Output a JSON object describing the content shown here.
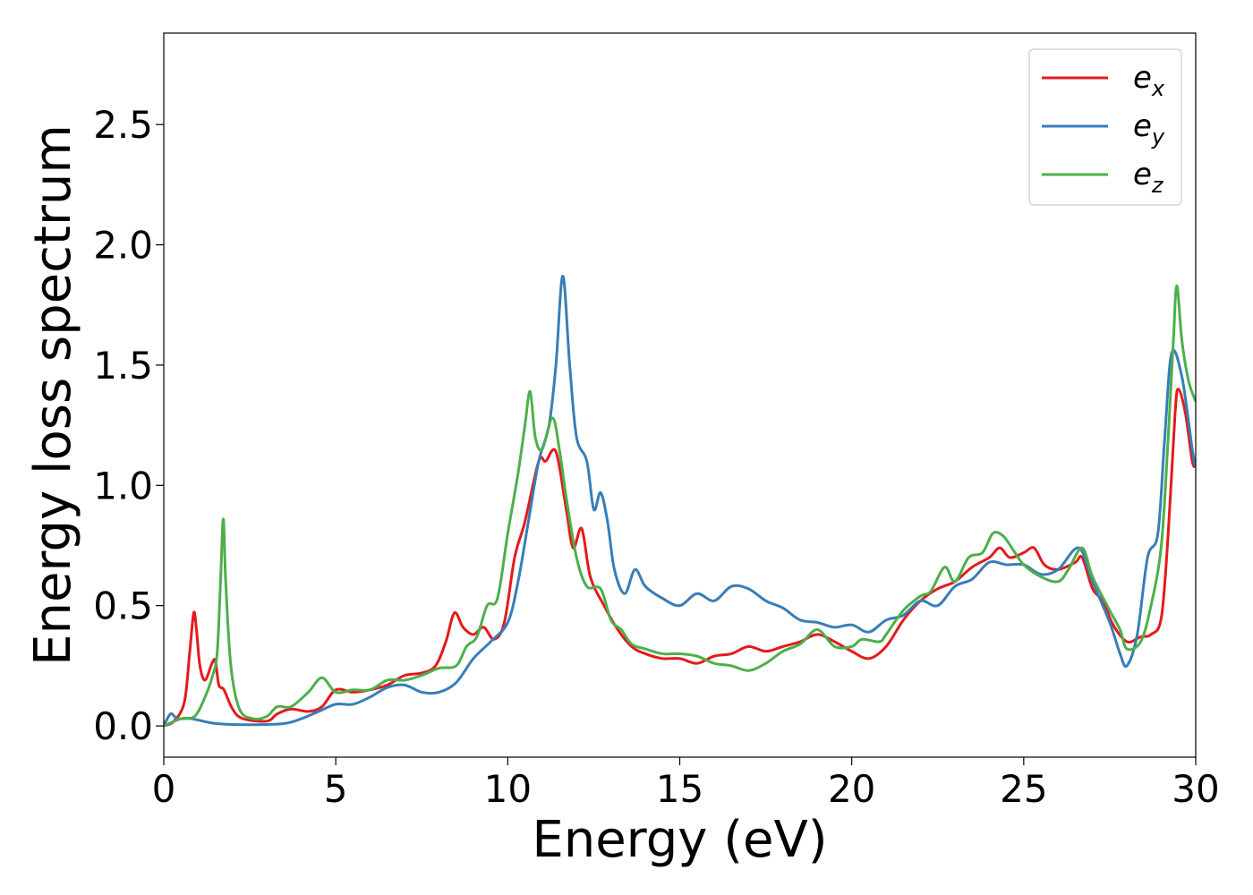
{
  "chart_data": {
    "type": "line",
    "title": "",
    "xlabel": "Energy (eV)",
    "ylabel": "Energy loss spectrum",
    "xlim": [
      0,
      30
    ],
    "ylim": [
      -0.13,
      2.88
    ],
    "xticks": [
      0,
      5,
      10,
      15,
      20,
      25,
      30
    ],
    "xtick_labels": [
      "0",
      "5",
      "10",
      "15",
      "20",
      "25",
      "30"
    ],
    "yticks": [
      0.0,
      0.5,
      1.0,
      1.5,
      2.0,
      2.5
    ],
    "ytick_labels": [
      "0.0",
      "0.5",
      "1.0",
      "1.5",
      "2.0",
      "2.5"
    ],
    "grid": false,
    "legend": {
      "placement": "top-right",
      "entries": [
        {
          "base": "e",
          "sub": "x",
          "color": "#e41a1c"
        },
        {
          "base": "e",
          "sub": "y",
          "color": "#377eb8"
        },
        {
          "base": "e",
          "sub": "z",
          "color": "#4daf4a"
        }
      ]
    },
    "series": [
      {
        "color": "#e41a1c",
        "points": [
          [
            0,
            0.0
          ],
          [
            0.3,
            0.02
          ],
          [
            0.6,
            0.1
          ],
          [
            0.75,
            0.3
          ],
          [
            0.87,
            0.47
          ],
          [
            0.95,
            0.4
          ],
          [
            1.05,
            0.25
          ],
          [
            1.2,
            0.19
          ],
          [
            1.4,
            0.26
          ],
          [
            1.5,
            0.27
          ],
          [
            1.6,
            0.17
          ],
          [
            1.75,
            0.15
          ],
          [
            2.0,
            0.07
          ],
          [
            2.3,
            0.03
          ],
          [
            3.0,
            0.02
          ],
          [
            3.3,
            0.05
          ],
          [
            3.7,
            0.07
          ],
          [
            4.2,
            0.06
          ],
          [
            4.6,
            0.08
          ],
          [
            5.0,
            0.15
          ],
          [
            5.5,
            0.14
          ],
          [
            6.0,
            0.15
          ],
          [
            6.5,
            0.17
          ],
          [
            7.0,
            0.21
          ],
          [
            7.5,
            0.22
          ],
          [
            7.9,
            0.25
          ],
          [
            8.2,
            0.35
          ],
          [
            8.45,
            0.47
          ],
          [
            8.7,
            0.41
          ],
          [
            9.0,
            0.38
          ],
          [
            9.3,
            0.41
          ],
          [
            9.6,
            0.36
          ],
          [
            9.9,
            0.43
          ],
          [
            10.2,
            0.7
          ],
          [
            10.5,
            0.85
          ],
          [
            10.9,
            1.1
          ],
          [
            11.1,
            1.1
          ],
          [
            11.4,
            1.14
          ],
          [
            11.7,
            0.9
          ],
          [
            11.9,
            0.74
          ],
          [
            12.15,
            0.82
          ],
          [
            12.4,
            0.62
          ],
          [
            12.8,
            0.5
          ],
          [
            13.2,
            0.4
          ],
          [
            13.6,
            0.33
          ],
          [
            14.0,
            0.3
          ],
          [
            14.5,
            0.28
          ],
          [
            15.0,
            0.28
          ],
          [
            15.5,
            0.26
          ],
          [
            16.0,
            0.29
          ],
          [
            16.5,
            0.3
          ],
          [
            17.0,
            0.33
          ],
          [
            17.5,
            0.31
          ],
          [
            18.0,
            0.33
          ],
          [
            18.5,
            0.35
          ],
          [
            19.0,
            0.38
          ],
          [
            19.5,
            0.35
          ],
          [
            20.0,
            0.31
          ],
          [
            20.5,
            0.28
          ],
          [
            21.0,
            0.33
          ],
          [
            21.5,
            0.44
          ],
          [
            22.0,
            0.52
          ],
          [
            22.5,
            0.57
          ],
          [
            23.0,
            0.6
          ],
          [
            23.5,
            0.66
          ],
          [
            24.0,
            0.7
          ],
          [
            24.3,
            0.74
          ],
          [
            24.6,
            0.7
          ],
          [
            25.0,
            0.72
          ],
          [
            25.3,
            0.74
          ],
          [
            25.6,
            0.67
          ],
          [
            26.0,
            0.65
          ],
          [
            26.5,
            0.68
          ],
          [
            26.7,
            0.7
          ],
          [
            27.0,
            0.57
          ],
          [
            27.3,
            0.52
          ],
          [
            27.6,
            0.42
          ],
          [
            28.0,
            0.35
          ],
          [
            28.4,
            0.37
          ],
          [
            28.7,
            0.38
          ],
          [
            29.0,
            0.45
          ],
          [
            29.2,
            0.8
          ],
          [
            29.4,
            1.3
          ],
          [
            29.5,
            1.4
          ],
          [
            29.7,
            1.3
          ],
          [
            29.9,
            1.1
          ],
          [
            30.0,
            1.08
          ]
        ]
      },
      {
        "color": "#377eb8",
        "points": [
          [
            0,
            0.0
          ],
          [
            0.2,
            0.05
          ],
          [
            0.4,
            0.03
          ],
          [
            0.8,
            0.03
          ],
          [
            1.5,
            0.01
          ],
          [
            2.5,
            0.005
          ],
          [
            3.5,
            0.01
          ],
          [
            4.0,
            0.03
          ],
          [
            4.5,
            0.06
          ],
          [
            5.0,
            0.09
          ],
          [
            5.5,
            0.09
          ],
          [
            6.0,
            0.12
          ],
          [
            6.5,
            0.16
          ],
          [
            7.0,
            0.17
          ],
          [
            7.5,
            0.14
          ],
          [
            8.0,
            0.14
          ],
          [
            8.5,
            0.18
          ],
          [
            9.0,
            0.28
          ],
          [
            9.5,
            0.35
          ],
          [
            10.0,
            0.43
          ],
          [
            10.3,
            0.6
          ],
          [
            10.6,
            0.85
          ],
          [
            10.9,
            1.1
          ],
          [
            11.2,
            1.25
          ],
          [
            11.4,
            1.5
          ],
          [
            11.6,
            1.87
          ],
          [
            11.8,
            1.5
          ],
          [
            12.0,
            1.2
          ],
          [
            12.3,
            1.1
          ],
          [
            12.5,
            0.9
          ],
          [
            12.7,
            0.97
          ],
          [
            12.9,
            0.85
          ],
          [
            13.1,
            0.65
          ],
          [
            13.4,
            0.55
          ],
          [
            13.7,
            0.65
          ],
          [
            14.0,
            0.58
          ],
          [
            14.5,
            0.53
          ],
          [
            15.0,
            0.5
          ],
          [
            15.5,
            0.55
          ],
          [
            16.0,
            0.52
          ],
          [
            16.5,
            0.58
          ],
          [
            17.0,
            0.57
          ],
          [
            17.5,
            0.52
          ],
          [
            18.0,
            0.49
          ],
          [
            18.5,
            0.44
          ],
          [
            19.0,
            0.43
          ],
          [
            19.5,
            0.41
          ],
          [
            20.0,
            0.42
          ],
          [
            20.5,
            0.39
          ],
          [
            21.0,
            0.44
          ],
          [
            21.5,
            0.46
          ],
          [
            22.0,
            0.52
          ],
          [
            22.5,
            0.5
          ],
          [
            23.0,
            0.58
          ],
          [
            23.5,
            0.61
          ],
          [
            24.0,
            0.68
          ],
          [
            24.5,
            0.67
          ],
          [
            25.0,
            0.67
          ],
          [
            25.5,
            0.63
          ],
          [
            26.0,
            0.65
          ],
          [
            26.6,
            0.74
          ],
          [
            27.0,
            0.6
          ],
          [
            27.5,
            0.43
          ],
          [
            27.8,
            0.3
          ],
          [
            28.0,
            0.25
          ],
          [
            28.3,
            0.38
          ],
          [
            28.6,
            0.7
          ],
          [
            28.9,
            0.8
          ],
          [
            29.1,
            1.2
          ],
          [
            29.3,
            1.55
          ],
          [
            29.6,
            1.45
          ],
          [
            29.9,
            1.15
          ],
          [
            30.0,
            1.08
          ]
        ]
      },
      {
        "color": "#4daf4a",
        "points": [
          [
            0,
            0.0
          ],
          [
            0.5,
            0.03
          ],
          [
            0.9,
            0.04
          ],
          [
            1.2,
            0.12
          ],
          [
            1.4,
            0.2
          ],
          [
            1.55,
            0.3
          ],
          [
            1.65,
            0.6
          ],
          [
            1.73,
            0.86
          ],
          [
            1.8,
            0.6
          ],
          [
            1.95,
            0.25
          ],
          [
            2.2,
            0.07
          ],
          [
            2.6,
            0.03
          ],
          [
            3.0,
            0.04
          ],
          [
            3.3,
            0.08
          ],
          [
            3.7,
            0.08
          ],
          [
            4.2,
            0.14
          ],
          [
            4.6,
            0.2
          ],
          [
            5.0,
            0.14
          ],
          [
            5.5,
            0.15
          ],
          [
            6.0,
            0.15
          ],
          [
            6.5,
            0.19
          ],
          [
            7.0,
            0.19
          ],
          [
            7.5,
            0.21
          ],
          [
            8.0,
            0.24
          ],
          [
            8.5,
            0.25
          ],
          [
            8.8,
            0.33
          ],
          [
            9.1,
            0.37
          ],
          [
            9.4,
            0.5
          ],
          [
            9.7,
            0.53
          ],
          [
            10.0,
            0.8
          ],
          [
            10.3,
            1.05
          ],
          [
            10.5,
            1.25
          ],
          [
            10.65,
            1.39
          ],
          [
            10.8,
            1.2
          ],
          [
            11.0,
            1.15
          ],
          [
            11.3,
            1.28
          ],
          [
            11.5,
            1.15
          ],
          [
            11.7,
            0.95
          ],
          [
            12.0,
            0.7
          ],
          [
            12.3,
            0.58
          ],
          [
            12.7,
            0.57
          ],
          [
            13.0,
            0.44
          ],
          [
            13.3,
            0.4
          ],
          [
            13.6,
            0.34
          ],
          [
            14.0,
            0.32
          ],
          [
            14.5,
            0.3
          ],
          [
            15.0,
            0.3
          ],
          [
            15.5,
            0.29
          ],
          [
            16.0,
            0.26
          ],
          [
            16.5,
            0.25
          ],
          [
            17.0,
            0.23
          ],
          [
            17.5,
            0.26
          ],
          [
            18.0,
            0.31
          ],
          [
            18.5,
            0.34
          ],
          [
            19.0,
            0.4
          ],
          [
            19.5,
            0.33
          ],
          [
            20.0,
            0.33
          ],
          [
            20.3,
            0.36
          ],
          [
            20.8,
            0.35
          ],
          [
            21.0,
            0.38
          ],
          [
            21.5,
            0.48
          ],
          [
            22.0,
            0.54
          ],
          [
            22.3,
            0.56
          ],
          [
            22.7,
            0.66
          ],
          [
            23.0,
            0.6
          ],
          [
            23.4,
            0.7
          ],
          [
            23.8,
            0.72
          ],
          [
            24.1,
            0.8
          ],
          [
            24.4,
            0.79
          ],
          [
            24.7,
            0.73
          ],
          [
            25.0,
            0.67
          ],
          [
            25.5,
            0.62
          ],
          [
            26.0,
            0.6
          ],
          [
            26.3,
            0.65
          ],
          [
            26.7,
            0.74
          ],
          [
            27.0,
            0.62
          ],
          [
            27.5,
            0.48
          ],
          [
            27.8,
            0.4
          ],
          [
            28.0,
            0.32
          ],
          [
            28.4,
            0.35
          ],
          [
            28.7,
            0.5
          ],
          [
            29.0,
            0.75
          ],
          [
            29.2,
            1.2
          ],
          [
            29.35,
            1.6
          ],
          [
            29.45,
            1.83
          ],
          [
            29.6,
            1.6
          ],
          [
            29.8,
            1.43
          ],
          [
            30.0,
            1.35
          ]
        ]
      }
    ]
  }
}
